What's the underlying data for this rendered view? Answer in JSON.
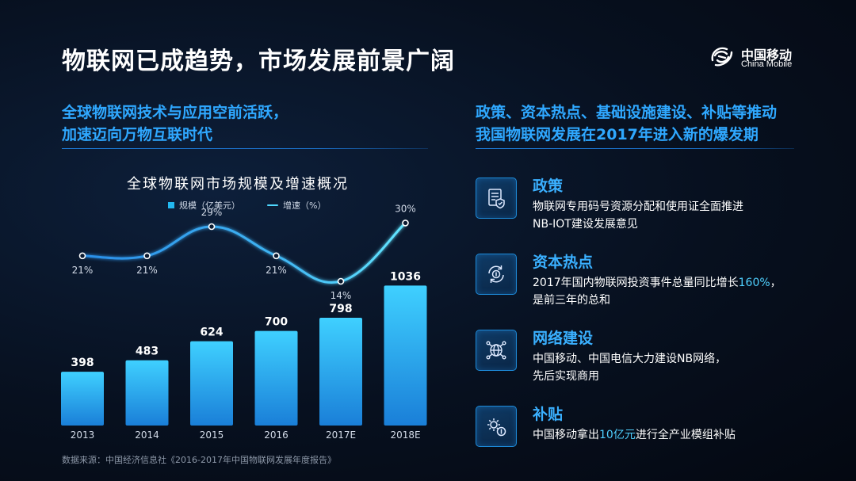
{
  "header": {
    "title": "物联网已成趋势，市场发展前景广阔",
    "logo_cn": "中国移动",
    "logo_en": "China Mobile"
  },
  "left": {
    "heading_lines": [
      "全球物联网技术与应用空前活跃，",
      "加速迈向万物互联时代"
    ]
  },
  "right": {
    "heading_lines": [
      "政策、资本热点、基础设施建设、补贴等推动",
      "我国物联网发展在2017年进入新的爆发期"
    ],
    "items": [
      {
        "icon": "document-shield-icon",
        "title": "政策",
        "lines": [
          [
            {
              "t": "物联网专用码号资源分配和使用证全面推进",
              "hl": false
            }
          ],
          [
            {
              "t": "NB-IOT建设发展意见",
              "hl": false
            }
          ]
        ]
      },
      {
        "icon": "refresh-coin-icon",
        "title": "资本热点",
        "lines": [
          [
            {
              "t": "2017年国内物联网投资事件总量同比增长",
              "hl": false
            },
            {
              "t": "160%",
              "hl": true
            },
            {
              "t": "，",
              "hl": false
            }
          ],
          [
            {
              "t": "是前三年的总和",
              "hl": false
            }
          ]
        ]
      },
      {
        "icon": "network-globe-icon",
        "title": "网络建设",
        "lines": [
          [
            {
              "t": "中国移动、中国电信大力建设NB网络，",
              "hl": false
            }
          ],
          [
            {
              "t": "先后实现商用",
              "hl": false
            }
          ]
        ]
      },
      {
        "icon": "gear-coin-icon",
        "title": "补贴",
        "lines": [
          [
            {
              "t": "中国移动拿出",
              "hl": false
            },
            {
              "t": "10亿元",
              "hl": true
            },
            {
              "t": "进行全产业模组补贴",
              "hl": false
            }
          ]
        ]
      }
    ]
  },
  "chart_data": {
    "type": "bar",
    "title": "全球物联网市场规模及增速概况",
    "categories": [
      "2013",
      "2014",
      "2015",
      "2016",
      "2017E",
      "2018E"
    ],
    "series": [
      {
        "name": "规模（亿美元）",
        "type": "bar",
        "values": [
          398,
          483,
          624,
          700,
          798,
          1036
        ]
      },
      {
        "name": "增速（%）",
        "type": "line",
        "values": [
          21,
          21,
          29,
          21,
          14,
          30
        ],
        "value_labels": [
          "21%",
          "21%",
          "29%",
          "21%",
          "14%",
          "30%"
        ]
      }
    ],
    "legend_position": "top-center",
    "grid": false,
    "colors": {
      "bar_top": "#3fd0ff",
      "bar_bottom": "#1a7fd8",
      "line": "#4fd8ff"
    }
  },
  "source": "数据来源：中国经济信息社《2016-2017年中国物联网发展年度报告》"
}
